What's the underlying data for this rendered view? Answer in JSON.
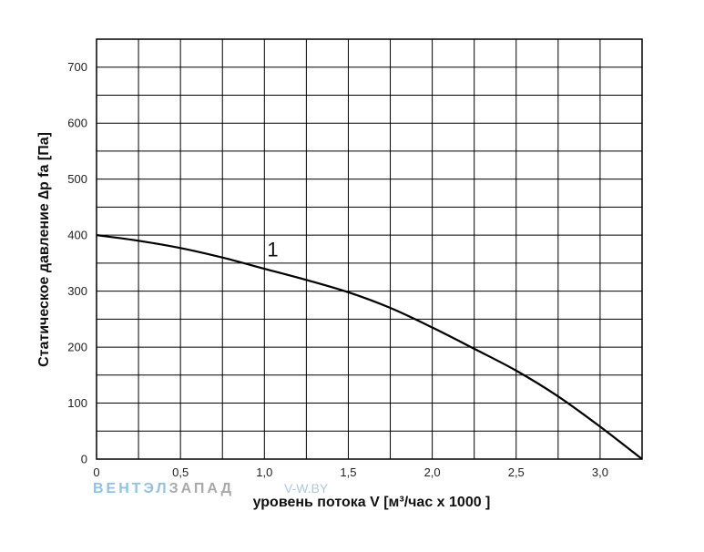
{
  "chart_data": {
    "type": "line",
    "title": "",
    "xlabel": "уровень потока  V [м³/час x 1000 ]",
    "ylabel": "Статическое давление  ∆p fa [Па]",
    "xlim": [
      0,
      3.25
    ],
    "ylim": [
      0,
      750
    ],
    "x_ticks": [
      "0",
      "0,5",
      "1,0",
      "1,5",
      "2,0",
      "2,5",
      "3,0"
    ],
    "x_tick_values": [
      0,
      0.5,
      1.0,
      1.5,
      2.0,
      2.5,
      3.0
    ],
    "y_ticks": [
      "0",
      "100",
      "200",
      "300",
      "400",
      "500",
      "600",
      "700"
    ],
    "y_tick_values": [
      0,
      100,
      200,
      300,
      400,
      500,
      600,
      700
    ],
    "grid": true,
    "grid_x_step": 0.25,
    "grid_y_step": 50,
    "line_color": "#000000",
    "series": [
      {
        "name": "1",
        "x": [
          0,
          0.25,
          0.5,
          0.75,
          1.0,
          1.25,
          1.5,
          1.75,
          2.0,
          2.25,
          2.5,
          2.75,
          3.0,
          3.25
        ],
        "y": [
          400,
          390,
          377,
          360,
          340,
          320,
          298,
          270,
          235,
          197,
          158,
          112,
          58,
          0
        ]
      }
    ],
    "annotations": [
      {
        "text": "1",
        "x": 1.05,
        "y": 375
      }
    ]
  },
  "watermark": {
    "part1": "ВЕНТЭЛ",
    "part2": "ЗАПАД",
    "site": "V-W.BY"
  }
}
